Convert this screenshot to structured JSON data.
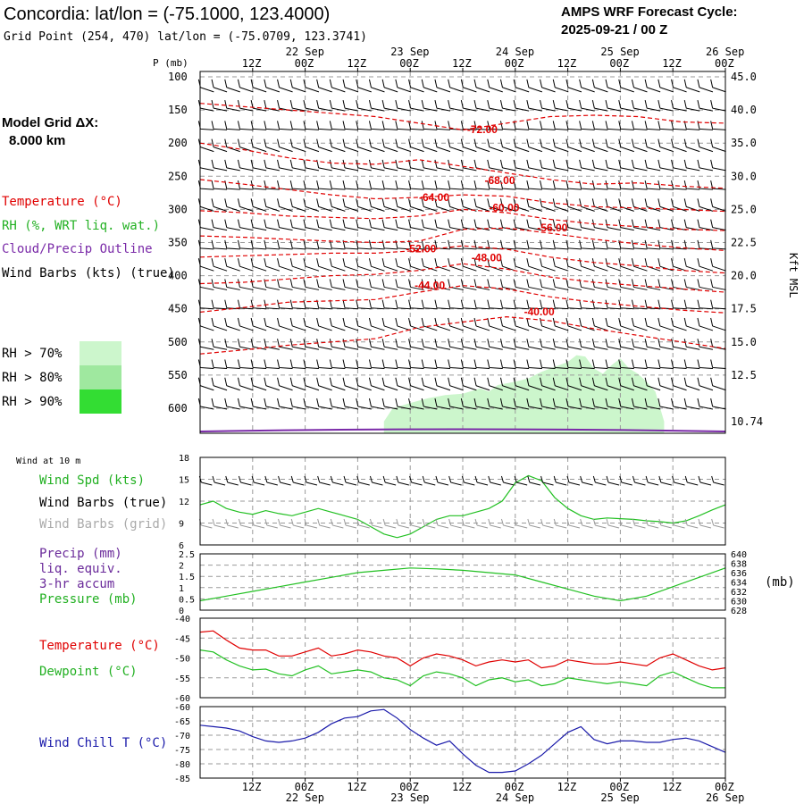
{
  "header": {
    "title": "Concordia:  lat/lon = (-75.1000, 123.4000)",
    "subtitle": "Grid Point (254, 470) lat/lon = (-75.0709, 123.3741)",
    "cycle_line1": "AMPS WRF Forecast Cycle:",
    "cycle_line2": "2025-09-21 / 00  Z"
  },
  "model_grid": {
    "label": "Model Grid ΔX:",
    "value": "8.000 km"
  },
  "time_axis": {
    "hours": [
      12,
      24,
      36,
      48,
      60,
      72,
      84,
      96,
      108,
      120
    ],
    "hour_labels": [
      "12Z",
      "00Z",
      "12Z",
      "00Z",
      "12Z",
      "00Z",
      "12Z",
      "00Z",
      "12Z",
      "00Z"
    ],
    "date_labels": [
      {
        "hour": 24,
        "text": "22 Sep"
      },
      {
        "hour": 48,
        "text": "23 Sep"
      },
      {
        "hour": 72,
        "text": "24 Sep"
      },
      {
        "hour": 96,
        "text": "25 Sep"
      },
      {
        "hour": 120,
        "text": "26 Sep"
      }
    ],
    "range_hours": [
      0,
      120
    ]
  },
  "colors": {
    "temperature": "#e00000",
    "rh": "#22c022",
    "cloud": "#7a2aa8",
    "grey_barbs": "#9a9a9a",
    "wind_chill": "#1a1aaa",
    "rh70": "#ccf6cc",
    "rh80": "#9fe89f",
    "rh90": "#33dd33"
  },
  "chart_data": [
    {
      "type": "heatmap",
      "name": "vertical-cross-section",
      "ylabel": "P (mb)",
      "right_label": "Kft MSL",
      "pressure_ticks": [
        100,
        150,
        200,
        250,
        300,
        350,
        400,
        450,
        500,
        550,
        600
      ],
      "kft_ticks": [
        {
          "p": 100,
          "label": "45.0"
        },
        {
          "p": 150,
          "label": "40.0"
        },
        {
          "p": 200,
          "label": "35.0"
        },
        {
          "p": 250,
          "label": "30.0"
        },
        {
          "p": 300,
          "label": "25.0"
        },
        {
          "p": 350,
          "label": "22.5"
        },
        {
          "p": 400,
          "label": "20.0"
        },
        {
          "p": 450,
          "label": "17.5"
        },
        {
          "p": 500,
          "label": "15.0"
        },
        {
          "p": 550,
          "label": "12.5"
        },
        {
          "p": 620,
          "label": "10.74"
        }
      ],
      "legend": {
        "temperature": "Temperature (°C)",
        "rh": "RH (%, WRT liq. wat.)",
        "cloud": "Cloud/Precip Outline",
        "wind": "Wind Barbs (kts) (true)",
        "rh70": "RH > 70%",
        "rh80": "RH > 80%",
        "rh90": "RH > 90%"
      },
      "isotherm_labels": [
        {
          "text": "-72.00",
          "hour": 61,
          "p": 185
        },
        {
          "text": "-68.00",
          "hour": 65,
          "p": 262
        },
        {
          "text": "-64.00",
          "hour": 50,
          "p": 287
        },
        {
          "text": "-60.00",
          "hour": 66,
          "p": 303
        },
        {
          "text": "-56.00",
          "hour": 77,
          "p": 333
        },
        {
          "text": "-52.00",
          "hour": 47,
          "p": 365
        },
        {
          "text": "-48.00",
          "hour": 62,
          "p": 378
        },
        {
          "text": "-44.00",
          "hour": 49,
          "p": 420
        },
        {
          "text": "-40.00",
          "hour": 74,
          "p": 460
        }
      ],
      "isotherms": [
        [
          [
            0,
            140
          ],
          [
            10,
            145
          ],
          [
            20,
            150
          ],
          [
            30,
            155
          ],
          [
            40,
            160
          ],
          [
            50,
            170
          ],
          [
            60,
            180
          ],
          [
            70,
            170
          ],
          [
            80,
            160
          ],
          [
            90,
            158
          ],
          [
            100,
            160
          ],
          [
            110,
            168
          ],
          [
            120,
            170
          ]
        ],
        [
          [
            0,
            200
          ],
          [
            10,
            210
          ],
          [
            20,
            222
          ],
          [
            30,
            230
          ],
          [
            40,
            232
          ],
          [
            50,
            225
          ],
          [
            60,
            235
          ],
          [
            70,
            245
          ],
          [
            80,
            255
          ],
          [
            90,
            262
          ],
          [
            100,
            260
          ],
          [
            110,
            265
          ],
          [
            120,
            268
          ]
        ],
        [
          [
            0,
            255
          ],
          [
            10,
            262
          ],
          [
            20,
            270
          ],
          [
            30,
            278
          ],
          [
            40,
            284
          ],
          [
            50,
            282
          ],
          [
            60,
            278
          ],
          [
            70,
            280
          ],
          [
            80,
            290
          ],
          [
            90,
            296
          ],
          [
            100,
            298
          ],
          [
            110,
            300
          ],
          [
            120,
            303
          ]
        ],
        [
          [
            0,
            302
          ],
          [
            10,
            305
          ],
          [
            20,
            310
          ],
          [
            30,
            312
          ],
          [
            40,
            314
          ],
          [
            50,
            310
          ],
          [
            60,
            300
          ],
          [
            70,
            305
          ],
          [
            80,
            315
          ],
          [
            90,
            322
          ],
          [
            100,
            326
          ],
          [
            110,
            330
          ],
          [
            120,
            332
          ]
        ],
        [
          [
            0,
            340
          ],
          [
            10,
            342
          ],
          [
            20,
            345
          ],
          [
            30,
            348
          ],
          [
            40,
            350
          ],
          [
            50,
            348
          ],
          [
            60,
            330
          ],
          [
            70,
            328
          ],
          [
            80,
            336
          ],
          [
            90,
            345
          ],
          [
            100,
            352
          ],
          [
            110,
            358
          ],
          [
            120,
            362
          ]
        ],
        [
          [
            0,
            372
          ],
          [
            10,
            370
          ],
          [
            20,
            368
          ],
          [
            30,
            366
          ],
          [
            40,
            366
          ],
          [
            50,
            362
          ],
          [
            60,
            355
          ],
          [
            70,
            360
          ],
          [
            80,
            372
          ],
          [
            90,
            380
          ],
          [
            100,
            385
          ],
          [
            110,
            392
          ],
          [
            120,
            396
          ]
        ],
        [
          [
            0,
            412
          ],
          [
            10,
            410
          ],
          [
            20,
            405
          ],
          [
            30,
            400
          ],
          [
            40,
            398
          ],
          [
            50,
            392
          ],
          [
            60,
            382
          ],
          [
            70,
            390
          ],
          [
            80,
            402
          ],
          [
            90,
            410
          ],
          [
            100,
            415
          ],
          [
            110,
            420
          ],
          [
            120,
            425
          ]
        ],
        [
          [
            0,
            455
          ],
          [
            10,
            448
          ],
          [
            20,
            440
          ],
          [
            30,
            438
          ],
          [
            40,
            436
          ],
          [
            50,
            425
          ],
          [
            60,
            415
          ],
          [
            70,
            420
          ],
          [
            80,
            432
          ],
          [
            90,
            440
          ],
          [
            100,
            446
          ],
          [
            110,
            452
          ],
          [
            120,
            456
          ]
        ],
        [
          [
            0,
            518
          ],
          [
            10,
            512
          ],
          [
            20,
            505
          ],
          [
            30,
            500
          ],
          [
            40,
            495
          ],
          [
            50,
            478
          ],
          [
            60,
            470
          ],
          [
            70,
            462
          ],
          [
            80,
            468
          ],
          [
            90,
            480
          ],
          [
            100,
            490
          ],
          [
            110,
            500
          ],
          [
            120,
            510
          ]
        ]
      ],
      "rh_region_hours": [
        [
          42,
          106
        ]
      ],
      "wind_rows_p": [
        120,
        150,
        180,
        210,
        240,
        270,
        300,
        330,
        360,
        390,
        420,
        450,
        480,
        510,
        540,
        570,
        600
      ]
    },
    {
      "type": "line",
      "name": "wind-at-10m",
      "title": "Wind at 10 m",
      "labels": [
        "Wind Spd (kts)",
        "Wind Barbs (true)",
        "Wind Barbs (grid)"
      ],
      "ylim": [
        6,
        18
      ],
      "yticks": [
        6,
        9,
        12,
        15,
        18
      ],
      "series": [
        {
          "name": "Wind Spd (kts)",
          "color": "#22c022",
          "x": [
            0,
            3,
            6,
            9,
            12,
            15,
            18,
            21,
            24,
            27,
            30,
            33,
            36,
            39,
            42,
            45,
            48,
            51,
            54,
            57,
            60,
            63,
            66,
            69,
            72,
            75,
            78,
            81,
            84,
            87,
            90,
            93,
            96,
            99,
            102,
            105,
            108,
            111,
            114,
            117,
            120
          ],
          "values": [
            11.5,
            12,
            11,
            10.5,
            10.2,
            10.7,
            10.3,
            10,
            10.5,
            11,
            10.5,
            10,
            9.5,
            8.5,
            7.5,
            7,
            7.5,
            8.5,
            9.5,
            10,
            10,
            10.5,
            11,
            12,
            14.5,
            15.5,
            14.8,
            12.5,
            11,
            10,
            9.5,
            9.7,
            9.6,
            9.5,
            9.3,
            9.2,
            9,
            9.3,
            10,
            10.8,
            11.5
          ]
        }
      ]
    },
    {
      "type": "line",
      "name": "precip-pressure",
      "labels": [
        "Precip (mm)",
        "liq. equiv.",
        "3-hr accum",
        "Pressure (mb)"
      ],
      "left_ylim": [
        0,
        2.5
      ],
      "left_yticks": [
        0.0,
        0.5,
        1.0,
        1.5,
        2.0,
        2.5
      ],
      "right_ylim": [
        628,
        640
      ],
      "right_yticks": [
        628,
        630,
        632,
        634,
        636,
        638,
        640
      ],
      "right_unit": "(mb)",
      "series": [
        {
          "name": "Pressure (mb)",
          "color": "#22c022",
          "x": [
            0,
            6,
            12,
            18,
            24,
            30,
            36,
            42,
            48,
            54,
            60,
            66,
            72,
            78,
            84,
            90,
            96,
            102,
            108,
            114,
            120
          ],
          "values": [
            630,
            631,
            632,
            633,
            634,
            635,
            636,
            636.5,
            637,
            636.8,
            636.5,
            636,
            635.5,
            634,
            632.5,
            631,
            630,
            631,
            633,
            635,
            637
          ]
        }
      ]
    },
    {
      "type": "line",
      "name": "temperature-dewpoint",
      "labels": [
        "Temperature (°C)",
        "Dewpoint (°C)"
      ],
      "ylim": [
        -60,
        -40
      ],
      "yticks": [
        -60,
        -55,
        -50,
        -45,
        -40
      ],
      "series": [
        {
          "name": "Temperature (°C)",
          "color": "#e00000",
          "x": [
            0,
            3,
            6,
            9,
            12,
            15,
            18,
            21,
            24,
            27,
            30,
            33,
            36,
            39,
            42,
            45,
            48,
            51,
            54,
            57,
            60,
            63,
            66,
            69,
            72,
            75,
            78,
            81,
            84,
            87,
            90,
            93,
            96,
            99,
            102,
            105,
            108,
            111,
            114,
            117,
            120
          ],
          "values": [
            -43.5,
            -43.2,
            -45.5,
            -47.5,
            -48,
            -48,
            -49.5,
            -49.5,
            -48.5,
            -47.5,
            -49.5,
            -49,
            -48,
            -48.5,
            -49.5,
            -50,
            -52,
            -50,
            -49,
            -49.5,
            -50.5,
            -52,
            -51,
            -50.5,
            -51,
            -50.5,
            -52.5,
            -52,
            -50.5,
            -51,
            -51.5,
            -51.5,
            -51,
            -51.5,
            -52,
            -50,
            -49,
            -50.5,
            -52,
            -53,
            -52.5
          ]
        },
        {
          "name": "Dewpoint (°C)",
          "color": "#22c022",
          "x": [
            0,
            3,
            6,
            9,
            12,
            15,
            18,
            21,
            24,
            27,
            30,
            33,
            36,
            39,
            42,
            45,
            48,
            51,
            54,
            57,
            60,
            63,
            66,
            69,
            72,
            75,
            78,
            81,
            84,
            87,
            90,
            93,
            96,
            99,
            102,
            105,
            108,
            111,
            114,
            117,
            120
          ],
          "values": [
            -48,
            -48.5,
            -50.5,
            -52,
            -53,
            -52.8,
            -54,
            -54.5,
            -53,
            -52,
            -54,
            -53.5,
            -53,
            -53.5,
            -55,
            -55.5,
            -57,
            -54.5,
            -53.5,
            -54,
            -55,
            -57,
            -55.5,
            -55,
            -56,
            -55.5,
            -57,
            -56.5,
            -55,
            -55.5,
            -56,
            -56.5,
            -56,
            -56.5,
            -57,
            -54.5,
            -53.5,
            -55,
            -56.5,
            -57.5,
            -57.5
          ]
        }
      ]
    },
    {
      "type": "line",
      "name": "wind-chill",
      "labels": [
        "Wind Chill T (°C)"
      ],
      "ylim": [
        -85,
        -60
      ],
      "yticks": [
        -85,
        -80,
        -75,
        -70,
        -65,
        -60
      ],
      "series": [
        {
          "name": "Wind Chill T (°C)",
          "color": "#1a1aaa",
          "x": [
            0,
            3,
            6,
            9,
            12,
            15,
            18,
            21,
            24,
            27,
            30,
            33,
            36,
            39,
            42,
            45,
            48,
            51,
            54,
            57,
            60,
            63,
            66,
            69,
            72,
            75,
            78,
            81,
            84,
            87,
            90,
            93,
            96,
            99,
            102,
            105,
            108,
            111,
            114,
            117,
            120
          ],
          "values": [
            -66.5,
            -67,
            -67.5,
            -68.5,
            -70.5,
            -72,
            -72.5,
            -72,
            -71,
            -69,
            -66,
            -64,
            -63.5,
            -61.5,
            -61,
            -64,
            -68,
            -71,
            -73.5,
            -72,
            -76.5,
            -80.5,
            -83,
            -83,
            -82.5,
            -80,
            -77,
            -73,
            -69,
            -67,
            -71.5,
            -73,
            -72,
            -72,
            -72.5,
            -72.5,
            -71.5,
            -71,
            -72,
            -74,
            -76
          ]
        }
      ]
    }
  ],
  "bottom_axis": {
    "hour_labels": [
      "12Z",
      "00Z",
      "12Z",
      "00Z",
      "12Z",
      "00Z",
      "12Z",
      "00Z",
      "12Z",
      "00Z"
    ],
    "date_labels": [
      "22 Sep",
      "23 Sep",
      "24 Sep",
      "25 Sep",
      "26 Sep"
    ]
  }
}
